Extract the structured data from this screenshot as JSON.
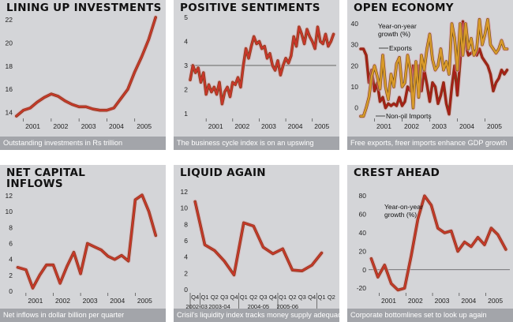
{
  "charts": [
    {
      "title": "LINING UP INVESTMENTS",
      "caption": "Outstanding investments in Rs trillion",
      "chart_data": {
        "type": "line",
        "title": "LINING UP INVESTMENTS",
        "ylim": [
          13.5,
          22.2
        ],
        "yticks": [
          "14",
          "16",
          "18",
          "20",
          "22"
        ],
        "xlim": [
          2000.7,
          2006.0
        ],
        "xticks": [
          "2001",
          "2002",
          "2003",
          "2004",
          "2005"
        ],
        "series": [
          {
            "color": "#c8352a",
            "x": [
              2000.75,
              2001.0,
              2001.25,
              2001.5,
              2001.75,
              2002.0,
              2002.25,
              2002.5,
              2002.75,
              2003.0,
              2003.25,
              2003.5,
              2003.75,
              2004.0,
              2004.25,
              2004.5,
              2004.75,
              2005.0,
              2005.25,
              2005.5,
              2005.75
            ],
            "y": [
              13.7,
              14.2,
              14.4,
              14.9,
              15.3,
              15.6,
              15.4,
              15.0,
              14.7,
              14.5,
              14.5,
              14.3,
              14.2,
              14.2,
              14.4,
              15.2,
              16.0,
              17.5,
              18.8,
              20.3,
              22.2
            ]
          }
        ]
      }
    },
    {
      "title": "POSITIVE SENTIMENTS",
      "caption": "The business cycle index is on an upswing",
      "chart_data": {
        "type": "line",
        "title": "POSITIVE SENTIMENTS",
        "ylim": [
          0.8,
          5.0
        ],
        "yticks": [
          "1",
          "2",
          "3",
          "4",
          "5"
        ],
        "xlim": [
          2000.4,
          2005.9
        ],
        "xticks": [
          "2001",
          "2002",
          "2003",
          "2004",
          "2005"
        ],
        "reference_line": 3,
        "series": [
          {
            "color": "#c8352a",
            "x": [
              2000.4,
              2000.5,
              2000.6,
              2000.7,
              2000.8,
              2000.9,
              2001.0,
              2001.1,
              2001.2,
              2001.3,
              2001.4,
              2001.5,
              2001.6,
              2001.7,
              2001.8,
              2001.9,
              2002.0,
              2002.1,
              2002.2,
              2002.3,
              2002.4,
              2002.5,
              2002.6,
              2002.7,
              2002.8,
              2002.9,
              2003.0,
              2003.1,
              2003.2,
              2003.3,
              2003.4,
              2003.5,
              2003.6,
              2003.7,
              2003.8,
              2003.9,
              2004.0,
              2004.1,
              2004.2,
              2004.3,
              2004.4,
              2004.5,
              2004.6,
              2004.7,
              2004.8,
              2004.9,
              2005.0,
              2005.1,
              2005.2,
              2005.3,
              2005.4,
              2005.5,
              2005.6,
              2005.7,
              2005.8
            ],
            "y": [
              2.4,
              3.0,
              2.7,
              2.9,
              2.3,
              2.7,
              1.8,
              2.2,
              1.9,
              2.1,
              1.8,
              2.3,
              1.4,
              1.9,
              2.1,
              1.7,
              2.3,
              2.2,
              2.5,
              2.1,
              3.0,
              3.7,
              3.3,
              3.8,
              4.2,
              3.9,
              4.0,
              3.7,
              3.8,
              3.3,
              3.5,
              3.0,
              2.8,
              3.2,
              2.6,
              3.0,
              3.3,
              3.1,
              3.4,
              4.2,
              3.8,
              4.6,
              4.3,
              3.9,
              4.5,
              4.2,
              4.0,
              3.7,
              4.6,
              4.0,
              3.9,
              4.3,
              3.8,
              4.0,
              4.3
            ]
          }
        ]
      }
    },
    {
      "title": "OPEN ECONOMY",
      "caption": "Free exports, freer imports enhance GDP growth",
      "chart_data": {
        "type": "line",
        "title": "OPEN ECONOMY",
        "ylim": [
          -5,
          43
        ],
        "yticks": [
          "0",
          "10",
          "20",
          "30",
          "40"
        ],
        "xlim": [
          2000.5,
          2005.9
        ],
        "xticks": [
          "2001",
          "2002",
          "2003",
          "2004",
          "2005"
        ],
        "annotation": "Year-on-year\ngrowth (%)",
        "series": [
          {
            "name": "Exports",
            "color": "#a81e18",
            "x": [
              2000.5,
              2000.6,
              2000.7,
              2000.8,
              2000.9,
              2001.0,
              2001.1,
              2001.2,
              2001.3,
              2001.4,
              2001.5,
              2001.6,
              2001.7,
              2001.8,
              2001.9,
              2002.0,
              2002.1,
              2002.2,
              2002.3,
              2002.4,
              2002.5,
              2002.6,
              2002.7,
              2002.8,
              2002.9,
              2003.0,
              2003.1,
              2003.2,
              2003.3,
              2003.4,
              2003.5,
              2003.6,
              2003.7,
              2003.8,
              2003.9,
              2004.0,
              2004.1,
              2004.2,
              2004.3,
              2004.4,
              2004.5,
              2004.6,
              2004.7,
              2004.8,
              2004.9,
              2005.0,
              2005.1,
              2005.2,
              2005.3,
              2005.4,
              2005.5,
              2005.6,
              2005.7,
              2005.8
            ],
            "y": [
              28,
              28,
              25,
              12,
              18,
              8,
              12,
              3,
              5,
              0,
              2,
              1,
              2,
              1,
              5,
              1,
              3,
              10,
              8,
              20,
              14,
              20,
              8,
              18,
              11,
              3,
              12,
              10,
              2,
              6,
              12,
              2,
              -3,
              10,
              20,
              6,
              22,
              41,
              30,
              25,
              26,
              27,
              25,
              28,
              24,
              22,
              20,
              16,
              8,
              12,
              14,
              18,
              16,
              18
            ]
          },
          {
            "name": "Non-oil Imports",
            "color": "#d99a2a",
            "x": [
              2000.5,
              2000.6,
              2000.7,
              2000.8,
              2000.9,
              2001.0,
              2001.1,
              2001.2,
              2001.3,
              2001.4,
              2001.5,
              2001.6,
              2001.7,
              2001.8,
              2001.9,
              2002.0,
              2002.1,
              2002.2,
              2002.3,
              2002.4,
              2002.5,
              2002.6,
              2002.7,
              2002.8,
              2002.9,
              2003.0,
              2003.1,
              2003.2,
              2003.3,
              2003.4,
              2003.5,
              2003.6,
              2003.7,
              2003.8,
              2003.9,
              2004.0,
              2004.1,
              2004.2,
              2004.3,
              2004.4,
              2004.5,
              2004.6,
              2004.7,
              2004.8,
              2004.9,
              2005.0,
              2005.1,
              2005.2,
              2005.3,
              2005.4,
              2005.5,
              2005.6,
              2005.7,
              2005.8
            ],
            "y": [
              -4,
              -4,
              0,
              5,
              15,
              20,
              15,
              9,
              25,
              10,
              4,
              16,
              10,
              21,
              24,
              10,
              12,
              25,
              18,
              0,
              22,
              5,
              25,
              18,
              28,
              35,
              23,
              18,
              20,
              28,
              18,
              22,
              16,
              40,
              33,
              18,
              40,
              25,
              40,
              28,
              33,
              25,
              28,
              42,
              30,
              35,
              42,
              30,
              28,
              26,
              28,
              32,
              28,
              28
            ]
          }
        ]
      }
    },
    {
      "title": "NET CAPITAL\nINFLOWS",
      "caption": "Net inflows in dollar billion per quarter",
      "chart_data": {
        "type": "line",
        "title": "NET CAPITAL INFLOWS",
        "ylim": [
          -0.2,
          12.8
        ],
        "yticks": [
          "0",
          "2",
          "4",
          "6",
          "8",
          "10",
          "12"
        ],
        "xlim": [
          2000.6,
          2006.0
        ],
        "xticks": [
          "2001",
          "2002",
          "2003",
          "2004",
          "2005"
        ],
        "series": [
          {
            "color": "#c8352a",
            "x": [
              2000.7,
              2001.0,
              2001.25,
              2001.5,
              2001.75,
              2002.0,
              2002.25,
              2002.5,
              2002.75,
              2003.0,
              2003.25,
              2003.5,
              2003.75,
              2004.0,
              2004.25,
              2004.5,
              2004.75,
              2005.0,
              2005.25,
              2005.5,
              2005.75
            ],
            "y": [
              3.0,
              2.7,
              0.4,
              2.0,
              3.3,
              3.3,
              1.0,
              3.1,
              4.9,
              2.2,
              6.0,
              5.6,
              5.2,
              4.4,
              4.0,
              4.5,
              3.8,
              11.5,
              12.1,
              10.0,
              7.0
            ]
          }
        ]
      }
    },
    {
      "title": "LIQUID AGAIN",
      "caption": "Crisil's liquidity index tracks money supply adequacy",
      "chart_data": {
        "type": "line",
        "title": "LIQUID AGAIN",
        "ylim": [
          -0.2,
          12.3
        ],
        "yticks": [
          "0",
          "2",
          "4",
          "6",
          "8",
          "10",
          "12"
        ],
        "xlim": [
          0.3,
          13.8
        ],
        "xticks": [
          "Q4",
          "Q1",
          "Q2",
          "Q3",
          "Q4",
          "Q1",
          "Q2",
          "Q3",
          "Q4",
          "Q1",
          "Q2",
          "Q3",
          "Q4",
          "Q1",
          "Q2"
        ],
        "year_groups": [
          "2002-03",
          "2003-04",
          "2004-05",
          "2005-06"
        ],
        "series": [
          {
            "color": "#c8352a",
            "x": [
              0,
              1,
              2,
              3,
              4,
              5,
              6,
              7,
              8,
              9,
              10,
              11,
              12,
              13
            ],
            "y": [
              10.8,
              5.5,
              4.8,
              3.5,
              1.8,
              8.2,
              7.8,
              5.2,
              4.4,
              5.0,
              2.4,
              2.3,
              3.0,
              4.5
            ]
          }
        ]
      }
    },
    {
      "title": "CREST AHEAD",
      "caption": "Corporate bottomlines set to look up again",
      "chart_data": {
        "type": "line",
        "title": "CREST AHEAD",
        "ylim": [
          -25,
          87
        ],
        "yticks": [
          "-20",
          "0",
          "20",
          "40",
          "60",
          "80"
        ],
        "xlim": [
          2000.6,
          2005.9
        ],
        "xticks": [
          "2001",
          "2002",
          "2003",
          "2004",
          "2005"
        ],
        "reference_line": 0,
        "annotation": "Year-on-year\ngrowth (%)",
        "series": [
          {
            "color": "#c8352a",
            "x": [
              2000.7,
              2000.95,
              2001.2,
              2001.45,
              2001.7,
              2001.95,
              2002.2,
              2002.45,
              2002.7,
              2002.95,
              2003.2,
              2003.45,
              2003.7,
              2003.95,
              2004.2,
              2004.45,
              2004.7,
              2004.95,
              2005.2,
              2005.45,
              2005.75
            ],
            "y": [
              12,
              -8,
              5,
              -15,
              -22,
              -20,
              15,
              55,
              80,
              70,
              45,
              40,
              42,
              20,
              30,
              25,
              35,
              27,
              45,
              38,
              22
            ]
          }
        ]
      }
    }
  ]
}
